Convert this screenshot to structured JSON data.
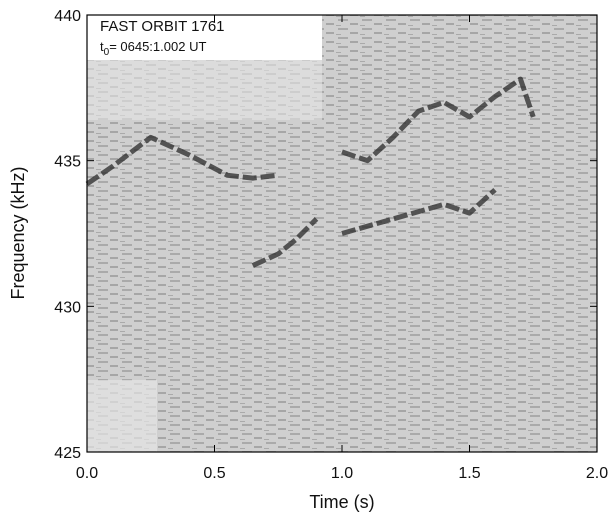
{
  "chart_data": {
    "type": "spectrogram",
    "title": "FAST ORBIT 1761",
    "subtitle": [
      "t",
      "0",
      "= 0645:1.002 UT"
    ],
    "xlabel": "Time (s)",
    "ylabel": "Frequency (kHz)",
    "xlim": [
      0,
      2
    ],
    "ylim": [
      425,
      440
    ],
    "xticks": [
      {
        "value": 0,
        "label": "0.0"
      },
      {
        "value": 0.5,
        "label": "0.5"
      },
      {
        "value": 1,
        "label": "1.0"
      },
      {
        "value": 1.5,
        "label": "1.5"
      },
      {
        "value": 2,
        "label": "2.0"
      }
    ],
    "yticks": [
      425,
      430,
      435,
      440
    ],
    "series": [
      {
        "color": "#2a2a2a",
        "x": [
          0,
          0.1,
          0.25,
          0.4,
          0.55,
          0.65,
          0.75
        ],
        "values": [
          434.2,
          434.8,
          435.8,
          435.2,
          434.5,
          434.4,
          434.5
        ]
      },
      {
        "color": "#2a2a2a",
        "x": [
          0.65,
          0.75,
          0.82,
          0.9
        ],
        "values": [
          431.4,
          431.8,
          432.3,
          433
        ]
      },
      {
        "color": "#2a2a2a",
        "x": [
          1.0,
          1.1,
          1.2,
          1.3,
          1.4,
          1.5,
          1.6,
          1.7,
          1.75
        ],
        "values": [
          435.3,
          435.0,
          435.8,
          436.7,
          437.0,
          436.5,
          437.2,
          437.8,
          436.5
        ]
      },
      {
        "color": "#2a2a2a",
        "x": [
          1.0,
          1.2,
          1.4,
          1.5,
          1.6
        ],
        "values": [
          432.5,
          433.0,
          433.5,
          433.2,
          434.0
        ]
      }
    ]
  }
}
